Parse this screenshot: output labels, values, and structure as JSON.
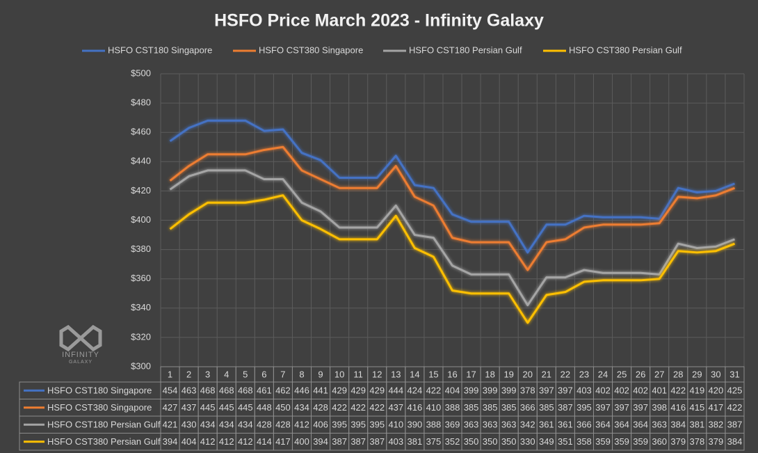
{
  "chart_data": {
    "type": "line",
    "title": "HSFO Price March 2023 - Infinity Galaxy",
    "watermark": [
      "INFINITY",
      "GALAXY"
    ],
    "categories": [
      "1",
      "2",
      "3",
      "4",
      "5",
      "6",
      "7",
      "8",
      "9",
      "10",
      "11",
      "12",
      "13",
      "14",
      "15",
      "16",
      "17",
      "18",
      "19",
      "20",
      "21",
      "22",
      "23",
      "24",
      "25",
      "26",
      "27",
      "28",
      "29",
      "30",
      "31"
    ],
    "series": [
      {
        "name": "HSFO CST180 Singapore",
        "color": "#4472c4",
        "values": [
          454,
          463,
          468,
          468,
          468,
          461,
          462,
          446,
          441,
          429,
          429,
          429,
          444,
          424,
          422,
          404,
          399,
          399,
          399,
          378,
          397,
          397,
          403,
          402,
          402,
          402,
          401,
          422,
          419,
          420,
          425
        ]
      },
      {
        "name": "HSFO CST380 Singapore",
        "color": "#ed7d31",
        "values": [
          427,
          437,
          445,
          445,
          445,
          448,
          450,
          434,
          428,
          422,
          422,
          422,
          437,
          416,
          410,
          388,
          385,
          385,
          385,
          366,
          385,
          387,
          395,
          397,
          397,
          397,
          398,
          416,
          415,
          417,
          422
        ]
      },
      {
        "name": "HSFO CST180 Persian Gulf",
        "color": "#a5a5a5",
        "values": [
          421,
          430,
          434,
          434,
          434,
          428,
          428,
          412,
          406,
          395,
          395,
          395,
          410,
          390,
          388,
          369,
          363,
          363,
          363,
          342,
          361,
          361,
          366,
          364,
          364,
          364,
          363,
          384,
          381,
          382,
          387
        ]
      },
      {
        "name": "HSFO CST380 Persian Gulf",
        "color": "#ffc000",
        "values": [
          394,
          404,
          412,
          412,
          412,
          414,
          417,
          400,
          394,
          387,
          387,
          387,
          403,
          381,
          375,
          352,
          350,
          350,
          350,
          330,
          349,
          351,
          358,
          359,
          359,
          359,
          360,
          379,
          378,
          379,
          384
        ]
      }
    ],
    "ylim": [
      300,
      500
    ],
    "yticks": [
      {
        "value": 300,
        "label": "$300"
      },
      {
        "value": 320,
        "label": "$320"
      },
      {
        "value": 340,
        "label": "$340"
      },
      {
        "value": 360,
        "label": "$360"
      },
      {
        "value": 380,
        "label": "$380"
      },
      {
        "value": 400,
        "label": "$400"
      },
      {
        "value": 420,
        "label": "$420"
      },
      {
        "value": 440,
        "label": "$440"
      },
      {
        "value": 460,
        "label": "$460"
      },
      {
        "value": 480,
        "label": "$480"
      },
      {
        "value": 500,
        "label": "$500"
      }
    ],
    "grid": true
  }
}
